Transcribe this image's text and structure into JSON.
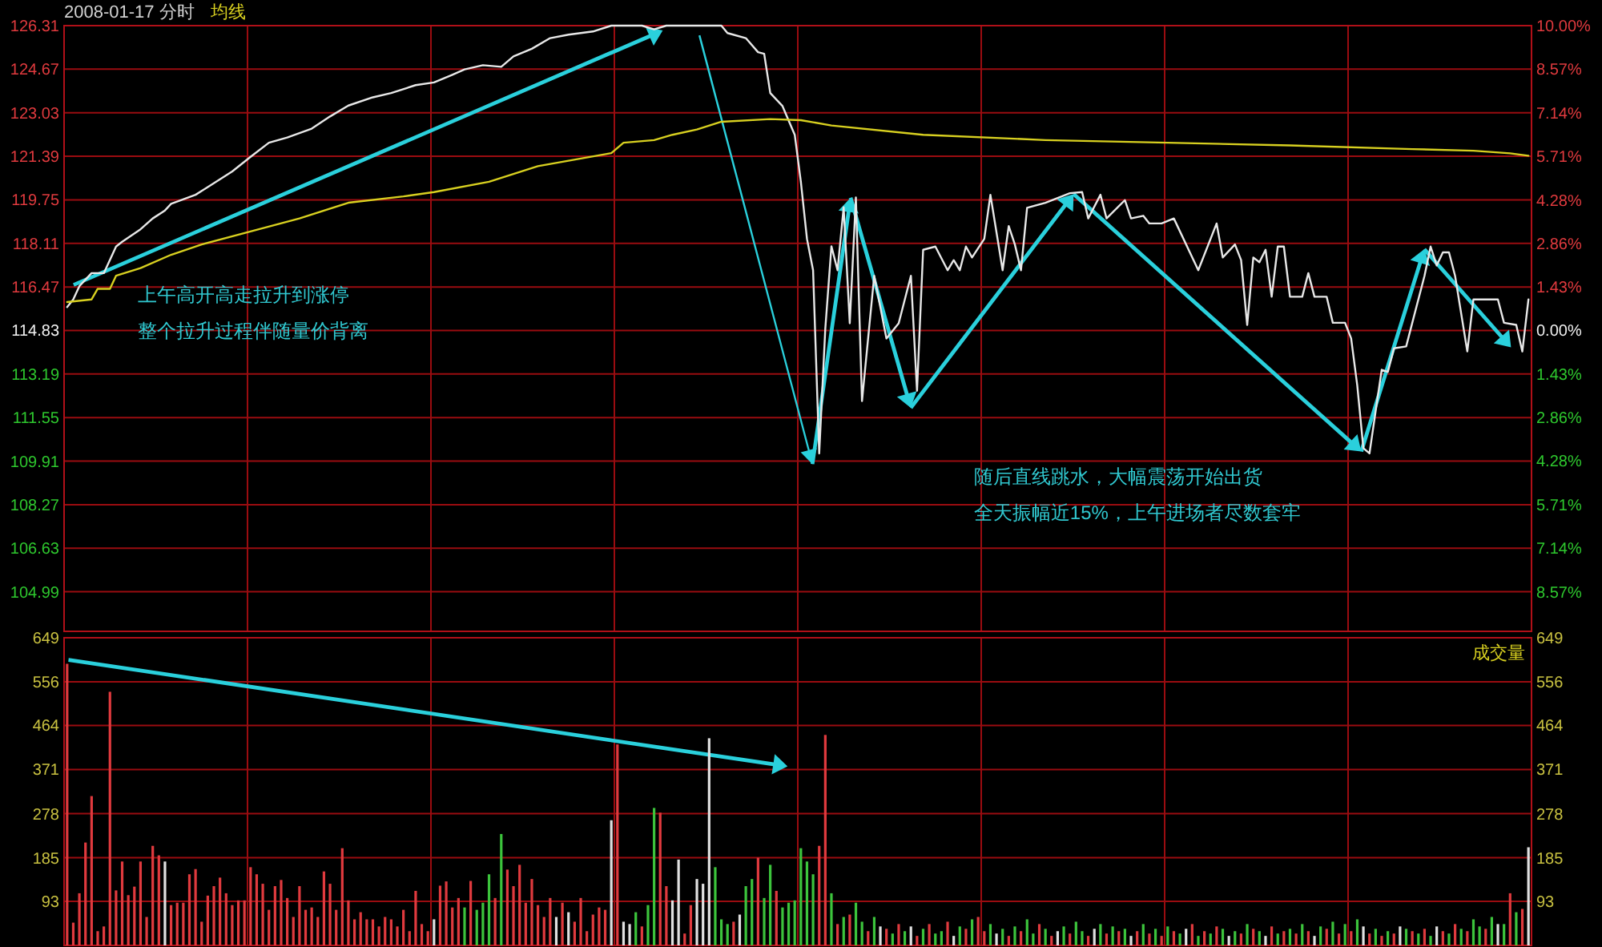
{
  "chart_data": [
    {
      "type": "line",
      "title": "2008-01-17 分时",
      "grid": true,
      "categories": [
        null,
        null,
        null,
        null,
        null,
        null,
        null,
        null,
        null,
        null,
        null,
        null,
        null,
        null,
        null,
        null,
        null,
        null,
        null,
        null,
        null,
        null,
        null,
        null,
        null,
        null,
        null,
        null,
        null,
        null,
        null,
        null,
        null,
        null,
        null,
        null,
        null,
        null,
        null,
        null,
        null,
        null,
        null,
        null,
        null,
        null,
        null,
        null,
        null,
        null,
        null,
        null,
        null,
        null,
        null,
        null,
        null,
        null,
        null,
        null,
        null,
        null,
        null,
        null,
        null,
        null,
        null,
        null,
        null,
        null,
        null,
        null,
        null,
        null,
        null,
        null,
        null,
        null,
        null,
        null,
        null,
        null,
        null,
        null,
        null,
        null,
        null,
        null,
        null,
        null,
        null,
        null,
        null,
        null,
        null,
        null,
        null,
        null,
        null,
        null,
        null,
        null,
        null,
        null,
        null,
        null,
        null,
        null,
        null,
        null,
        null,
        null,
        null,
        null,
        null,
        null,
        null,
        null,
        null,
        null,
        null,
        null,
        null,
        null,
        null,
        null,
        null,
        null,
        null,
        null,
        null,
        null,
        null,
        null,
        null,
        null,
        null,
        null,
        null,
        null,
        null,
        null,
        null,
        null,
        null,
        null,
        null,
        null,
        null,
        null,
        null,
        null,
        null,
        null,
        null,
        null,
        null,
        null,
        null,
        null,
        null,
        null,
        null,
        null,
        null,
        null,
        null,
        null,
        null,
        null,
        null,
        null,
        null,
        null,
        null,
        null,
        null,
        null,
        null,
        null,
        null,
        null,
        null,
        null,
        null,
        null,
        null,
        null,
        null,
        null,
        null,
        null,
        null,
        null,
        null,
        null,
        null,
        null,
        null,
        null,
        null,
        null,
        null,
        null,
        null,
        null,
        null,
        null,
        null,
        null,
        null,
        null,
        null,
        null,
        null,
        null,
        null,
        null,
        null,
        null,
        null,
        null,
        null,
        null,
        null,
        null,
        null,
        null,
        null,
        null,
        null,
        null,
        null,
        null,
        null,
        null,
        null,
        null,
        null,
        null
      ],
      "ylim": [
        103.5,
        126.31
      ],
      "yticks": [
        126.31,
        124.67,
        123.03,
        121.39,
        119.75,
        118.11,
        116.47,
        114.83,
        113.19,
        111.55,
        109.91,
        108.27,
        106.63,
        104.99
      ],
      "y2lim": [
        -9.87,
        10.0
      ],
      "y2ticks": [
        {
          "value": 10,
          "label": "10.00%"
        },
        {
          "value": 8.57,
          "label": "8.57%"
        },
        {
          "value": 7.14,
          "label": "7.14%"
        },
        {
          "value": 5.71,
          "label": "5.71%"
        },
        {
          "value": 4.28,
          "label": "4.28%"
        },
        {
          "value": 2.86,
          "label": "2.86%"
        },
        {
          "value": 1.43,
          "label": "1.43%"
        },
        {
          "value": 0,
          "label": "0.00%"
        },
        {
          "value": -1.43,
          "label": "1.43%"
        },
        {
          "value": -2.86,
          "label": "2.86%"
        },
        {
          "value": -4.28,
          "label": "4.28%"
        },
        {
          "value": -5.71,
          "label": "5.71%"
        },
        {
          "value": -7.14,
          "label": "7.14%"
        },
        {
          "value": -8.57,
          "label": "8.57%"
        }
      ],
      "annotations": [
        "上午高开高走拉升到涨停",
        "整个拉升过程伴随量价背离",
        "随后直线跳水，大幅震荡开始出货",
        "全天振幅近15%，上午进场者尽数套牢"
      ],
      "series": [
        {
          "color": "#e8e8e8",
          "values": [
            115.71,
            116.0,
            116.5,
            null,
            116.99,
            null,
            116.99,
            null,
            117.99,
            118.17,
            null,
            null,
            118.64,
            null,
            119.05,
            null,
            119.35,
            119.6,
            null,
            null,
            null,
            119.94,
            null,
            120.23,
            null,
            null,
            null,
            120.82,
            null,
            null,
            121.37,
            null,
            null,
            121.9,
            null,
            null,
            122.1,
            null,
            null,
            null,
            122.43,
            null,
            null,
            122.89,
            null,
            null,
            123.3,
            null,
            null,
            null,
            123.61,
            null,
            null,
            123.77,
            null,
            null,
            null,
            124.07,
            null,
            null,
            124.17,
            null,
            null,
            124.46,
            null,
            124.66,
            null,
            null,
            124.82,
            null,
            null,
            124.76,
            null,
            125.15,
            null,
            null,
            125.44,
            null,
            null,
            125.84,
            null,
            null,
            125.97,
            null,
            null,
            null,
            126.09,
            null,
            null,
            126.31,
            null,
            null,
            null,
            null,
            126.31,
            null,
            126.17,
            null,
            126.31,
            null,
            null,
            null,
            null,
            null,
            null,
            null,
            null,
            126.31,
            126.03,
            null,
            null,
            125.84,
            null,
            125.31,
            125.25,
            123.77,
            null,
            123.28,
            null,
            122.2,
            120.43,
            118.28,
            117.1,
            110.2,
            114.9,
            118.0,
            117.1,
            119.47,
            115.1,
            119.84,
            112.17,
            114.53,
            116.89,
            null,
            114.53,
            null,
            115.1,
            null,
            116.89,
            112.56,
            117.87,
            null,
            117.99,
            null,
            117.1,
            117.48,
            117.1,
            117.99,
            117.58,
            null,
            118.28,
            119.94,
            null,
            117.1,
            118.76,
            118.07,
            117.1,
            119.45,
            null,
            null,
            119.64,
            null,
            null,
            null,
            120.0,
            null,
            120.04,
            119.05,
            null,
            119.94,
            119.05,
            null,
            null,
            119.74,
            119.05,
            null,
            119.15,
            118.86,
            null,
            118.86,
            null,
            119.05,
            null,
            null,
            null,
            117.1,
            null,
            null,
            118.86,
            117.58,
            null,
            118.07,
            117.48,
            115.04,
            117.58,
            117.4,
            117.87,
            116.1,
            117.99,
            117.99,
            116.1,
            null,
            116.1,
            116.99,
            116.1,
            null,
            116.1,
            115.12,
            null,
            115.12,
            114.53,
            112.76,
            110.4,
            110.2,
            111.78,
            113.35,
            113.27,
            114.16,
            null,
            114.23,
            115.12,
            null,
            116.89,
            117.99,
            117.28,
            117.77,
            117.77,
            116.89,
            null,
            114.04,
            116.0,
            null,
            null,
            null,
            116.0,
            115.12,
            null,
            115.04,
            114.04,
            116.0
          ]
        },
        {
          "name": "均线",
          "color": "#d8d020",
          "values": [
            115.9,
            null,
            null,
            null,
            116.0,
            116.4,
            null,
            116.4,
            116.89,
            null,
            null,
            null,
            117.18,
            null,
            null,
            null,
            null,
            117.68,
            null,
            null,
            null,
            null,
            118.07,
            null,
            null,
            null,
            null,
            null,
            null,
            null,
            118.56,
            null,
            null,
            null,
            null,
            null,
            null,
            null,
            119.05,
            null,
            null,
            null,
            null,
            null,
            null,
            null,
            119.64,
            null,
            null,
            null,
            null,
            null,
            null,
            null,
            null,
            119.88,
            null,
            null,
            null,
            null,
            120.04,
            null,
            null,
            null,
            null,
            null,
            null,
            null,
            null,
            120.43,
            null,
            null,
            null,
            null,
            null,
            null,
            null,
            121.02,
            null,
            null,
            null,
            null,
            null,
            null,
            null,
            null,
            null,
            null,
            null,
            121.51,
            null,
            121.9,
            null,
            null,
            null,
            null,
            122.0,
            null,
            null,
            122.2,
            null,
            null,
            null,
            122.4,
            null,
            null,
            null,
            122.69,
            null,
            null,
            null,
            null,
            null,
            null,
            null,
            122.79,
            null,
            null,
            null,
            null,
            122.75,
            null,
            null,
            null,
            null,
            122.55,
            null,
            null,
            null,
            null,
            null,
            null,
            null,
            null,
            null,
            null,
            null,
            null,
            null,
            null,
            122.2,
            null,
            null,
            null,
            null,
            null,
            null,
            null,
            null,
            null,
            null,
            null,
            null,
            null,
            null,
            null,
            null,
            null,
            null,
            null,
            122.0,
            null,
            null,
            null,
            null,
            null,
            null,
            null,
            null,
            null,
            null,
            null,
            null,
            null,
            null,
            null,
            null,
            null,
            null,
            null,
            121.9,
            null,
            null,
            null,
            null,
            null,
            null,
            null,
            null,
            null,
            null,
            null,
            null,
            null,
            null,
            null,
            null,
            null,
            null,
            null,
            121.8,
            null,
            null,
            null,
            null,
            null,
            null,
            null,
            null,
            null,
            null,
            null,
            null,
            null,
            null,
            null,
            null,
            null,
            null,
            null,
            121.66,
            null,
            null,
            null,
            null,
            null,
            null,
            null,
            null,
            null,
            121.6,
            null,
            null,
            null,
            null,
            null,
            121.5,
            null,
            null,
            121.41
          ]
        }
      ]
    },
    {
      "type": "bar",
      "title": "成交量",
      "grid": true,
      "categories": [
        null,
        null,
        null,
        null,
        null,
        null,
        null,
        null,
        null,
        null,
        null,
        null,
        null,
        null,
        null,
        null,
        null,
        null,
        null,
        null,
        null,
        null,
        null,
        null,
        null,
        null,
        null,
        null,
        null,
        null,
        null,
        null,
        null,
        null,
        null,
        null,
        null,
        null,
        null,
        null,
        null,
        null,
        null,
        null,
        null,
        null,
        null,
        null,
        null,
        null,
        null,
        null,
        null,
        null,
        null,
        null,
        null,
        null,
        null,
        null,
        null,
        null,
        null,
        null,
        null,
        null,
        null,
        null,
        null,
        null,
        null,
        null,
        null,
        null,
        null,
        null,
        null,
        null,
        null,
        null,
        null,
        null,
        null,
        null,
        null,
        null,
        null,
        null,
        null,
        null,
        null,
        null,
        null,
        null,
        null,
        null,
        null,
        null,
        null,
        null,
        null,
        null,
        null,
        null,
        null,
        null,
        null,
        null,
        null,
        null,
        null,
        null,
        null,
        null,
        null,
        null,
        null,
        null,
        null,
        null,
        null,
        null,
        null,
        null,
        null,
        null,
        null,
        null,
        null,
        null,
        null,
        null,
        null,
        null,
        null,
        null,
        null,
        null,
        null,
        null,
        null,
        null,
        null,
        null,
        null,
        null,
        null,
        null,
        null,
        null,
        null,
        null,
        null,
        null,
        null,
        null,
        null,
        null,
        null,
        null,
        null,
        null,
        null,
        null,
        null,
        null,
        null,
        null,
        null,
        null,
        null,
        null,
        null,
        null,
        null,
        null,
        null,
        null,
        null,
        null,
        null,
        null,
        null,
        null,
        null,
        null,
        null,
        null,
        null,
        null,
        null,
        null,
        null,
        null,
        null,
        null,
        null,
        null,
        null,
        null,
        null,
        null,
        null,
        null,
        null,
        null,
        null,
        null,
        null,
        null,
        null,
        null,
        null,
        null,
        null,
        null,
        null,
        null,
        null,
        null,
        null,
        null,
        null,
        null,
        null,
        null,
        null,
        null,
        null,
        null,
        null,
        null,
        null,
        null,
        null,
        null,
        null,
        null,
        null,
        null
      ],
      "ylim": [
        0,
        649
      ],
      "yticks": [
        649,
        556,
        464,
        371,
        278,
        185,
        93
      ],
      "y2lim": [
        0,
        649
      ],
      "y2ticks": [
        649,
        556,
        464,
        371,
        278,
        185,
        93
      ],
      "values": [
        594,
        48,
        110,
        217,
        315,
        30,
        40,
        535,
        116,
        177,
        106,
        124,
        177,
        60,
        210,
        190,
        177,
        85,
        90,
        90,
        150,
        161,
        50,
        105,
        125,
        143,
        110,
        85,
        95,
        95,
        165,
        150,
        130,
        75,
        125,
        138,
        100,
        60,
        125,
        75,
        80,
        60,
        156,
        130,
        75,
        205,
        95,
        55,
        70,
        55,
        55,
        40,
        60,
        55,
        40,
        75,
        30,
        115,
        45,
        30,
        55,
        126,
        135,
        80,
        100,
        80,
        136,
        75,
        90,
        150,
        100,
        235,
        160,
        125,
        170,
        90,
        140,
        85,
        60,
        100,
        60,
        90,
        70,
        50,
        100,
        30,
        65,
        80,
        75,
        264,
        424,
        50,
        45,
        70,
        40,
        85,
        290,
        280,
        125,
        95,
        181,
        25,
        85,
        140,
        130,
        437,
        165,
        55,
        45,
        50,
        65,
        125,
        140,
        185,
        100,
        170,
        115,
        80,
        90,
        95,
        205,
        177,
        150,
        210,
        444,
        110,
        45,
        60,
        65,
        90,
        50,
        30,
        60,
        40,
        35,
        25,
        45,
        30,
        40,
        20,
        35,
        45,
        25,
        30,
        50,
        20,
        40,
        35,
        55,
        60,
        30,
        45,
        25,
        35,
        20,
        40,
        30,
        55,
        25,
        45,
        35,
        20,
        30,
        40,
        25,
        50,
        30,
        20,
        35,
        45,
        25,
        40,
        30,
        35,
        20,
        30,
        45,
        25,
        35,
        20,
        40,
        30,
        25,
        35,
        45,
        20,
        30,
        25,
        40,
        35,
        20,
        30,
        25,
        45,
        35,
        30,
        20,
        40,
        25,
        30,
        35,
        25,
        45,
        30,
        20,
        40,
        35,
        50,
        25,
        45,
        30,
        55,
        40,
        25,
        35,
        20,
        30,
        25,
        40,
        35,
        30,
        25,
        35,
        20,
        40,
        30,
        25,
        45,
        35,
        30,
        55,
        40,
        35,
        60,
        45,
        45,
        110,
        70,
        77,
        207
      ],
      "colors": [
        "#e03a3e",
        "#e03a3e",
        "#e03a3e",
        "#e03a3e",
        "#e03a3e",
        "#e03a3e",
        "#e03a3e",
        "#e03a3e",
        "#e03a3e",
        "#e03a3e",
        "#e03a3e",
        "#e03a3e",
        "#e03a3e",
        "#e03a3e",
        "#e03a3e",
        "#e03a3e",
        "#e0e0e0",
        "#e03a3e",
        "#e03a3e",
        "#e03a3e",
        "#e03a3e",
        "#e03a3e",
        "#e03a3e",
        "#e03a3e",
        "#e03a3e",
        "#e03a3e",
        "#e03a3e",
        "#e03a3e",
        "#e03a3e",
        "#e03a3e",
        "#e03a3e",
        "#e03a3e",
        "#e03a3e",
        "#e03a3e",
        "#e03a3e",
        "#e03a3e",
        "#e03a3e",
        "#e03a3e",
        "#e03a3e",
        "#e03a3e",
        "#e03a3e",
        "#e03a3e",
        "#e03a3e",
        "#e03a3e",
        "#e03a3e",
        "#e03a3e",
        "#e03a3e",
        "#e03a3e",
        "#e03a3e",
        "#e03a3e",
        "#e03a3e",
        "#e03a3e",
        "#e03a3e",
        "#e03a3e",
        "#e03a3e",
        "#e03a3e",
        "#e03a3e",
        "#e03a3e",
        "#e03a3e",
        "#e03a3e",
        "#e0e0e0",
        "#e03a3e",
        "#e03a3e",
        "#e03a3e",
        "#e03a3e",
        "#3cc43c",
        "#e03a3e",
        "#3cc43c",
        "#3cc43c",
        "#3cc43c",
        "#e03a3e",
        "#3cc43c",
        "#e03a3e",
        "#e03a3e",
        "#e03a3e",
        "#e03a3e",
        "#e03a3e",
        "#e03a3e",
        "#e03a3e",
        "#e03a3e",
        "#e0e0e0",
        "#e03a3e",
        "#e0e0e0",
        "#e03a3e",
        "#e03a3e",
        "#e03a3e",
        "#e03a3e",
        "#e03a3e",
        "#e03a3e",
        "#e0e0e0",
        "#e03a3e",
        "#e0e0e0",
        "#e0e0e0",
        "#3cc43c",
        "#e03a3e",
        "#3cc43c",
        "#3cc43c",
        "#e03a3e",
        "#e03a3e",
        "#e0e0e0",
        "#e0e0e0",
        "#e03a3e",
        "#e03a3e",
        "#e0e0e0",
        "#e0e0e0",
        "#e0e0e0",
        "#3cc43c",
        "#3cc43c",
        "#3cc43c",
        "#e03a3e",
        "#e0e0e0",
        "#3cc43c",
        "#3cc43c",
        "#e03a3e",
        "#3cc43c",
        "#3cc43c",
        "#e03a3e",
        "#3cc43c",
        "#3cc43c",
        "#3cc43c",
        "#3cc43c",
        "#3cc43c",
        "#3cc43c",
        "#e03a3e",
        "#e03a3e",
        "#3cc43c",
        "#e03a3e",
        "#3cc43c",
        "#e03a3e",
        "#3cc43c",
        "#3cc43c",
        "#e03a3e",
        "#3cc43c",
        "#e0e0e0",
        "#e03a3e",
        "#3cc43c",
        "#e03a3e",
        "#3cc43c",
        "#e0e0e0",
        "#e03a3e",
        "#3cc43c",
        "#e03a3e",
        "#3cc43c",
        "#3cc43c",
        "#e03a3e",
        "#e0e0e0",
        "#3cc43c",
        "#e03a3e",
        "#3cc43c",
        "#e03a3e",
        "#e03a3e",
        "#3cc43c",
        "#e0e0e0",
        "#3cc43c",
        "#e03a3e",
        "#3cc43c",
        "#e03a3e",
        "#3cc43c",
        "#3cc43c",
        "#e03a3e",
        "#3cc43c",
        "#e03a3e",
        "#e0e0e0",
        "#3cc43c",
        "#e03a3e",
        "#3cc43c",
        "#3cc43c",
        "#e03a3e",
        "#e0e0e0",
        "#3cc43c",
        "#e03a3e",
        "#3cc43c",
        "#e03a3e",
        "#3cc43c",
        "#e0e0e0",
        "#e03a3e",
        "#3cc43c",
        "#e03a3e",
        "#3cc43c",
        "#e03a3e",
        "#3cc43c",
        "#e03a3e",
        "#3cc43c",
        "#e0e0e0",
        "#e03a3e",
        "#3cc43c",
        "#e03a3e",
        "#3cc43c",
        "#e03a3e",
        "#3cc43c",
        "#e0e0e0",
        "#3cc43c",
        "#e03a3e",
        "#3cc43c",
        "#e03a3e",
        "#3cc43c",
        "#e0e0e0",
        "#e03a3e",
        "#3cc43c",
        "#e03a3e",
        "#3cc43c",
        "#e03a3e",
        "#3cc43c",
        "#e03a3e",
        "#e0e0e0",
        "#3cc43c",
        "#e03a3e",
        "#3cc43c",
        "#e03a3e",
        "#3cc43c",
        "#e03a3e",
        "#3cc43c",
        "#e0e0e0",
        "#e03a3e",
        "#3cc43c",
        "#e03a3e",
        "#3cc43c",
        "#e03a3e",
        "#e0e0e0",
        "#3cc43c",
        "#e03a3e",
        "#3cc43c",
        "#e03a3e",
        "#3cc43c",
        "#e0e0e0",
        "#e03a3e",
        "#3cc43c",
        "#e03a3e",
        "#3cc43c",
        "#e03a3e",
        "#3cc43c",
        "#3cc43c",
        "#e03a3e",
        "#3cc43c",
        "#e0e0e0",
        "#3cc43c",
        "#e03a3e",
        "#3cc43c",
        "#e03a3e",
        "#e0e0e0"
      ]
    }
  ]
}
